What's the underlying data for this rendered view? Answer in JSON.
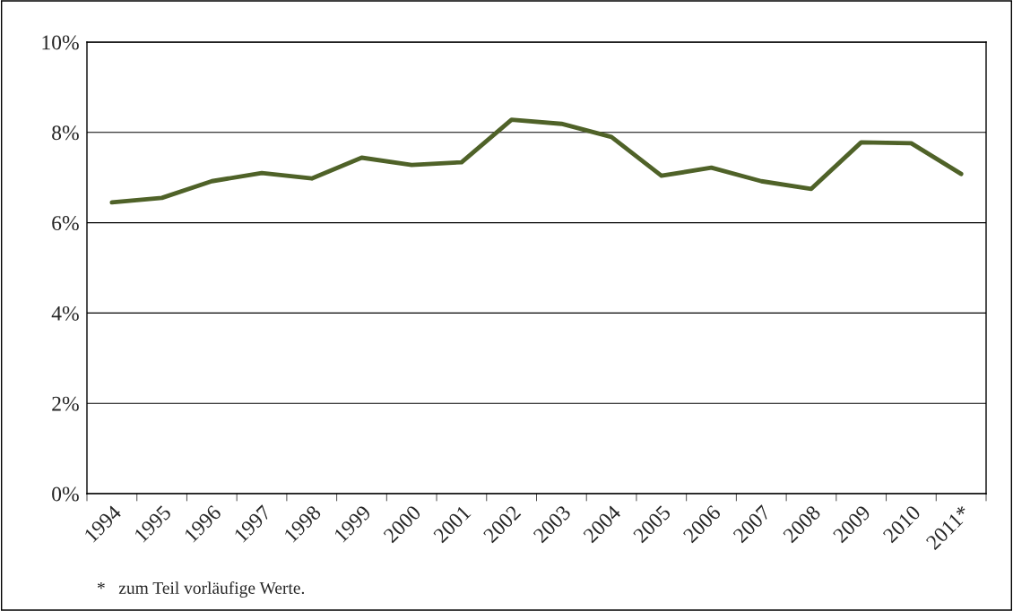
{
  "chart_data": {
    "type": "line",
    "categories": [
      "1994",
      "1995",
      "1996",
      "1997",
      "1998",
      "1999",
      "2000",
      "2001",
      "2002",
      "2003",
      "2004",
      "2005",
      "2006",
      "2007",
      "2008",
      "2009",
      "2010",
      "2011*"
    ],
    "series": [
      {
        "color": "#4f6228",
        "values": [
          6.45,
          6.55,
          6.92,
          7.1,
          6.98,
          7.44,
          7.28,
          7.34,
          8.28,
          8.19,
          7.9,
          7.04,
          7.22,
          6.92,
          6.75,
          7.78,
          7.76,
          7.08
        ]
      }
    ],
    "ylim": [
      0,
      10
    ],
    "yticks": [
      {
        "value": 0,
        "label": "0%"
      },
      {
        "value": 2,
        "label": "2%"
      },
      {
        "value": 4,
        "label": "4%"
      },
      {
        "value": 6,
        "label": "6%"
      },
      {
        "value": 8,
        "label": "8%"
      },
      {
        "value": 10,
        "label": "10%"
      }
    ],
    "grid": "y",
    "marker": "none",
    "line_style": "solid",
    "annotations": [
      "*   zum Teil vorläufige Werte."
    ]
  }
}
